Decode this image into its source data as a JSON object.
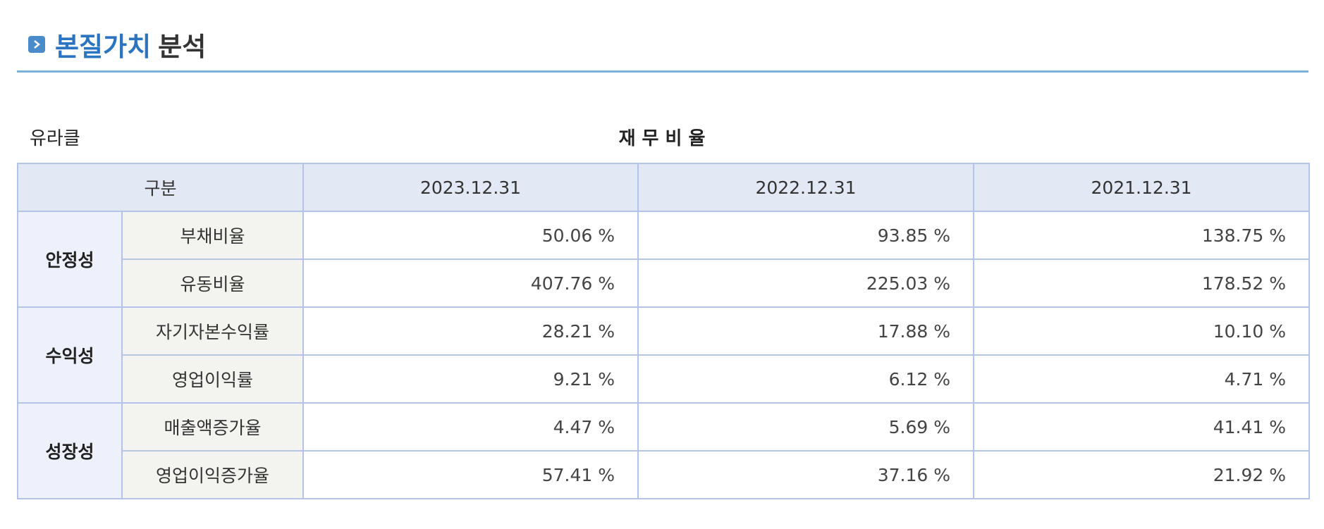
{
  "header": {
    "title_highlight": "본질가치",
    "title_rest": "분석"
  },
  "company": "유라클",
  "caption": "재 무 비 율",
  "table": {
    "columns": [
      "구분",
      "2023.12.31",
      "2022.12.31",
      "2021.12.31"
    ],
    "groups": [
      {
        "name": "안정성",
        "rows": [
          {
            "label": "부채비율",
            "values": [
              "50.06 %",
              "93.85 %",
              "138.75 %"
            ]
          },
          {
            "label": "유동비율",
            "values": [
              "407.76 %",
              "225.03 %",
              "178.52 %"
            ]
          }
        ]
      },
      {
        "name": "수익성",
        "rows": [
          {
            "label": "자기자본수익률",
            "values": [
              "28.21 %",
              "17.88 %",
              "10.10 %"
            ]
          },
          {
            "label": "영업이익률",
            "values": [
              "9.21 %",
              "6.12 %",
              "4.71 %"
            ]
          }
        ]
      },
      {
        "name": "성장성",
        "rows": [
          {
            "label": "매출액증가율",
            "values": [
              "4.47 %",
              "5.69 %",
              "41.41 %"
            ]
          },
          {
            "label": "영업이익증가율",
            "values": [
              "57.41 %",
              "37.16 %",
              "21.92 %"
            ]
          }
        ]
      }
    ]
  }
}
